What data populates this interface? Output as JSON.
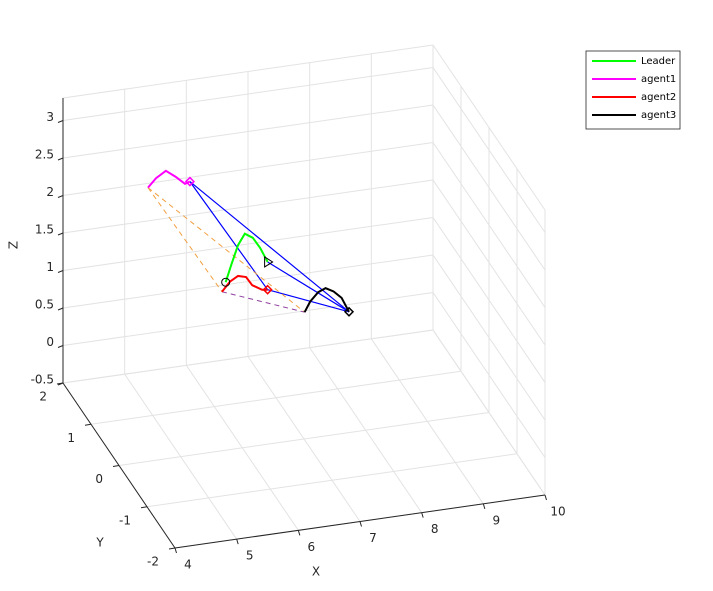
{
  "chart_data": {
    "type": "line3d",
    "xlabel": "X",
    "ylabel": "Y",
    "zlabel": "Z",
    "xlim": [
      4,
      10
    ],
    "ylim": [
      -2,
      2
    ],
    "zlim": [
      -0.5,
      3.3
    ],
    "xticks": [
      4,
      5,
      6,
      7,
      8,
      9,
      10
    ],
    "yticks": [
      -2,
      -1,
      0,
      1,
      2
    ],
    "zticks": [
      -0.5,
      0,
      0.5,
      1,
      1.5,
      2,
      2.5,
      3
    ],
    "grid": true,
    "legend": "top-right",
    "series": [
      {
        "name": "Leader",
        "color": "#00ff00",
        "x": [
          5.73,
          5.82,
          5.93,
          6.04,
          6.17,
          6.29,
          6.41
        ],
        "y": [
          0,
          0,
          0,
          0,
          0,
          0,
          0
        ],
        "z": [
          1.74,
          1.96,
          2.21,
          2.35,
          2.28,
          2.13,
          1.93
        ]
      },
      {
        "name": "agent1",
        "color": "#ff00ff",
        "x": [
          4.47,
          4.6,
          4.76,
          4.92,
          5.07,
          5.15
        ],
        "y": [
          0,
          0,
          0,
          0,
          0,
          0
        ],
        "z": [
          3.15,
          3.26,
          3.34,
          3.24,
          3.13,
          3.15
        ]
      },
      {
        "name": "agent2",
        "color": "#ff0000",
        "x": [
          5.67,
          5.8,
          5.93,
          6.06,
          6.16,
          6.32,
          6.41
        ],
        "y": [
          0,
          0,
          0,
          0,
          0,
          0,
          0
        ],
        "z": [
          1.62,
          1.74,
          1.8,
          1.77,
          1.65,
          1.57,
          1.56
        ]
      },
      {
        "name": "agent3",
        "color": "#000000",
        "x": [
          7.01,
          7.1,
          7.23,
          7.35,
          7.48,
          7.61,
          7.73
        ],
        "y": [
          0,
          0,
          0,
          0,
          0,
          0,
          0
        ],
        "z": [
          1.19,
          1.32,
          1.43,
          1.47,
          1.41,
          1.31,
          1.11
        ]
      }
    ]
  }
}
